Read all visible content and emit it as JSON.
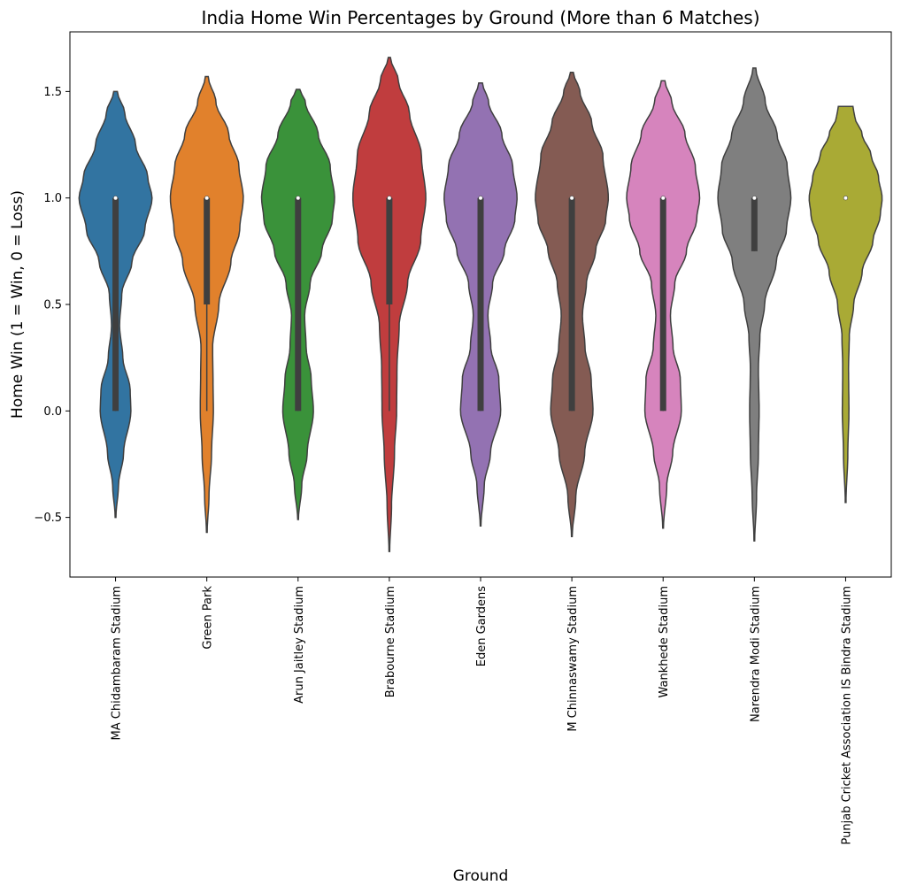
{
  "chart_data": {
    "type": "violin",
    "title": "India Home Win Percentages by Ground (More than 6 Matches)",
    "xlabel": "Ground",
    "ylabel": "Home Win (1 = Win, 0 = Loss)",
    "ylim": [
      -0.78,
      1.78
    ],
    "yticks": [
      -0.5,
      0.0,
      0.5,
      1.0,
      1.5
    ],
    "ytick_labels": [
      "−0.5",
      "0.0",
      "0.5",
      "1.0",
      "1.5"
    ],
    "grid": false,
    "categories": [
      "MA Chidambaram Stadium",
      "Green Park",
      "Arun Jaitley Stadium",
      "Brabourne Stadium",
      "Eden Gardens",
      "M Chinnaswamy Stadium",
      "Wankhede Stadium",
      "Narendra Modi Stadium",
      "Punjab Cricket Association IS Bindra Stadium"
    ],
    "colors": [
      "#3274a1",
      "#e1812c",
      "#3a923a",
      "#c03d3e",
      "#9372b2",
      "#845b53",
      "#d684bd",
      "#7f7f7f",
      "#a9aa35"
    ],
    "series": [
      {
        "min": -0.5,
        "max": 1.5,
        "q1": 0.0,
        "median": 1.0,
        "q3": 1.0,
        "whisker_low": 0.0,
        "whisker_high": 1.0,
        "profile": [
          [
            -0.5,
            0.01
          ],
          [
            -0.35,
            0.08
          ],
          [
            -0.2,
            0.22
          ],
          [
            0.0,
            0.42
          ],
          [
            0.1,
            0.4
          ],
          [
            0.25,
            0.2
          ],
          [
            0.4,
            0.11
          ],
          [
            0.55,
            0.17
          ],
          [
            0.7,
            0.45
          ],
          [
            0.85,
            0.8
          ],
          [
            1.0,
            1.0
          ],
          [
            1.1,
            0.88
          ],
          [
            1.25,
            0.55
          ],
          [
            1.4,
            0.25
          ],
          [
            1.5,
            0.05
          ]
        ]
      },
      {
        "min": -0.57,
        "max": 1.57,
        "q1": 0.5,
        "median": 1.0,
        "q3": 1.0,
        "whisker_low": 0.0,
        "whisker_high": 1.0,
        "profile": [
          [
            -0.57,
            0.01
          ],
          [
            -0.4,
            0.06
          ],
          [
            -0.2,
            0.13
          ],
          [
            0.0,
            0.18
          ],
          [
            0.15,
            0.17
          ],
          [
            0.3,
            0.16
          ],
          [
            0.5,
            0.33
          ],
          [
            0.7,
            0.66
          ],
          [
            0.85,
            0.9
          ],
          [
            1.0,
            1.0
          ],
          [
            1.15,
            0.88
          ],
          [
            1.3,
            0.6
          ],
          [
            1.45,
            0.25
          ],
          [
            1.57,
            0.04
          ]
        ]
      },
      {
        "min": -0.51,
        "max": 1.51,
        "q1": 0.0,
        "median": 1.0,
        "q3": 1.0,
        "whisker_low": 0.0,
        "whisker_high": 1.0,
        "profile": [
          [
            -0.51,
            0.01
          ],
          [
            -0.35,
            0.1
          ],
          [
            -0.2,
            0.25
          ],
          [
            0.0,
            0.42
          ],
          [
            0.15,
            0.36
          ],
          [
            0.3,
            0.22
          ],
          [
            0.45,
            0.18
          ],
          [
            0.6,
            0.33
          ],
          [
            0.75,
            0.65
          ],
          [
            0.9,
            0.94
          ],
          [
            1.0,
            1.0
          ],
          [
            1.15,
            0.88
          ],
          [
            1.3,
            0.55
          ],
          [
            1.45,
            0.2
          ],
          [
            1.51,
            0.05
          ]
        ]
      },
      {
        "min": -0.66,
        "max": 1.66,
        "q1": 0.5,
        "median": 1.0,
        "q3": 1.0,
        "whisker_low": 0.0,
        "whisker_high": 1.0,
        "profile": [
          [
            -0.66,
            0.01
          ],
          [
            -0.45,
            0.06
          ],
          [
            -0.2,
            0.14
          ],
          [
            0.0,
            0.2
          ],
          [
            0.2,
            0.21
          ],
          [
            0.4,
            0.27
          ],
          [
            0.6,
            0.5
          ],
          [
            0.8,
            0.86
          ],
          [
            1.0,
            1.0
          ],
          [
            1.2,
            0.88
          ],
          [
            1.4,
            0.55
          ],
          [
            1.55,
            0.25
          ],
          [
            1.66,
            0.03
          ]
        ]
      },
      {
        "min": -0.54,
        "max": 1.54,
        "q1": 0.0,
        "median": 1.0,
        "q3": 1.0,
        "whisker_low": 0.0,
        "whisker_high": 1.0,
        "profile": [
          [
            -0.54,
            0.01
          ],
          [
            -0.35,
            0.1
          ],
          [
            -0.2,
            0.27
          ],
          [
            0.0,
            0.55
          ],
          [
            0.15,
            0.5
          ],
          [
            0.3,
            0.28
          ],
          [
            0.45,
            0.2
          ],
          [
            0.6,
            0.33
          ],
          [
            0.75,
            0.65
          ],
          [
            0.9,
            0.94
          ],
          [
            1.0,
            1.0
          ],
          [
            1.15,
            0.88
          ],
          [
            1.3,
            0.58
          ],
          [
            1.45,
            0.22
          ],
          [
            1.54,
            0.05
          ]
        ]
      },
      {
        "min": -0.59,
        "max": 1.59,
        "q1": 0.0,
        "median": 1.0,
        "q3": 1.0,
        "whisker_low": 0.0,
        "whisker_high": 1.0,
        "profile": [
          [
            -0.59,
            0.01
          ],
          [
            -0.4,
            0.11
          ],
          [
            -0.2,
            0.35
          ],
          [
            0.0,
            0.58
          ],
          [
            0.15,
            0.53
          ],
          [
            0.3,
            0.36
          ],
          [
            0.45,
            0.29
          ],
          [
            0.6,
            0.4
          ],
          [
            0.75,
            0.65
          ],
          [
            0.9,
            0.93
          ],
          [
            1.0,
            1.0
          ],
          [
            1.2,
            0.85
          ],
          [
            1.35,
            0.55
          ],
          [
            1.5,
            0.22
          ],
          [
            1.59,
            0.04
          ]
        ]
      },
      {
        "min": -0.55,
        "max": 1.55,
        "q1": 0.0,
        "median": 1.0,
        "q3": 1.0,
        "whisker_low": 0.0,
        "whisker_high": 1.0,
        "profile": [
          [
            -0.55,
            0.01
          ],
          [
            -0.35,
            0.1
          ],
          [
            -0.2,
            0.26
          ],
          [
            0.0,
            0.5
          ],
          [
            0.15,
            0.47
          ],
          [
            0.3,
            0.27
          ],
          [
            0.45,
            0.2
          ],
          [
            0.6,
            0.32
          ],
          [
            0.75,
            0.64
          ],
          [
            0.9,
            0.92
          ],
          [
            1.0,
            1.0
          ],
          [
            1.15,
            0.88
          ],
          [
            1.3,
            0.6
          ],
          [
            1.45,
            0.24
          ],
          [
            1.55,
            0.05
          ]
        ]
      },
      {
        "min": -0.61,
        "max": 1.61,
        "q1": 0.75,
        "median": 1.0,
        "q3": 1.0,
        "whisker_low": 0.75,
        "whisker_high": 1.0,
        "profile": [
          [
            -0.61,
            0.01
          ],
          [
            -0.4,
            0.06
          ],
          [
            -0.2,
            0.11
          ],
          [
            0.0,
            0.13
          ],
          [
            0.2,
            0.11
          ],
          [
            0.35,
            0.15
          ],
          [
            0.5,
            0.28
          ],
          [
            0.7,
            0.6
          ],
          [
            0.85,
            0.88
          ],
          [
            1.0,
            1.0
          ],
          [
            1.15,
            0.9
          ],
          [
            1.3,
            0.62
          ],
          [
            1.45,
            0.3
          ],
          [
            1.61,
            0.04
          ]
        ]
      },
      {
        "min": -0.43,
        "max": 1.43,
        "q1": 1.0,
        "median": 1.0,
        "q3": 1.0,
        "whisker_low": 1.0,
        "whisker_high": 1.0,
        "profile": [
          [
            -0.43,
            0.01
          ],
          [
            -0.2,
            0.06
          ],
          [
            0.0,
            0.09
          ],
          [
            0.2,
            0.08
          ],
          [
            0.35,
            0.1
          ],
          [
            0.5,
            0.22
          ],
          [
            0.65,
            0.45
          ],
          [
            0.8,
            0.75
          ],
          [
            0.92,
            0.95
          ],
          [
            1.0,
            1.0
          ],
          [
            1.1,
            0.9
          ],
          [
            1.2,
            0.7
          ],
          [
            1.3,
            0.45
          ],
          [
            1.38,
            0.25
          ],
          [
            1.43,
            0.2
          ]
        ]
      }
    ]
  }
}
